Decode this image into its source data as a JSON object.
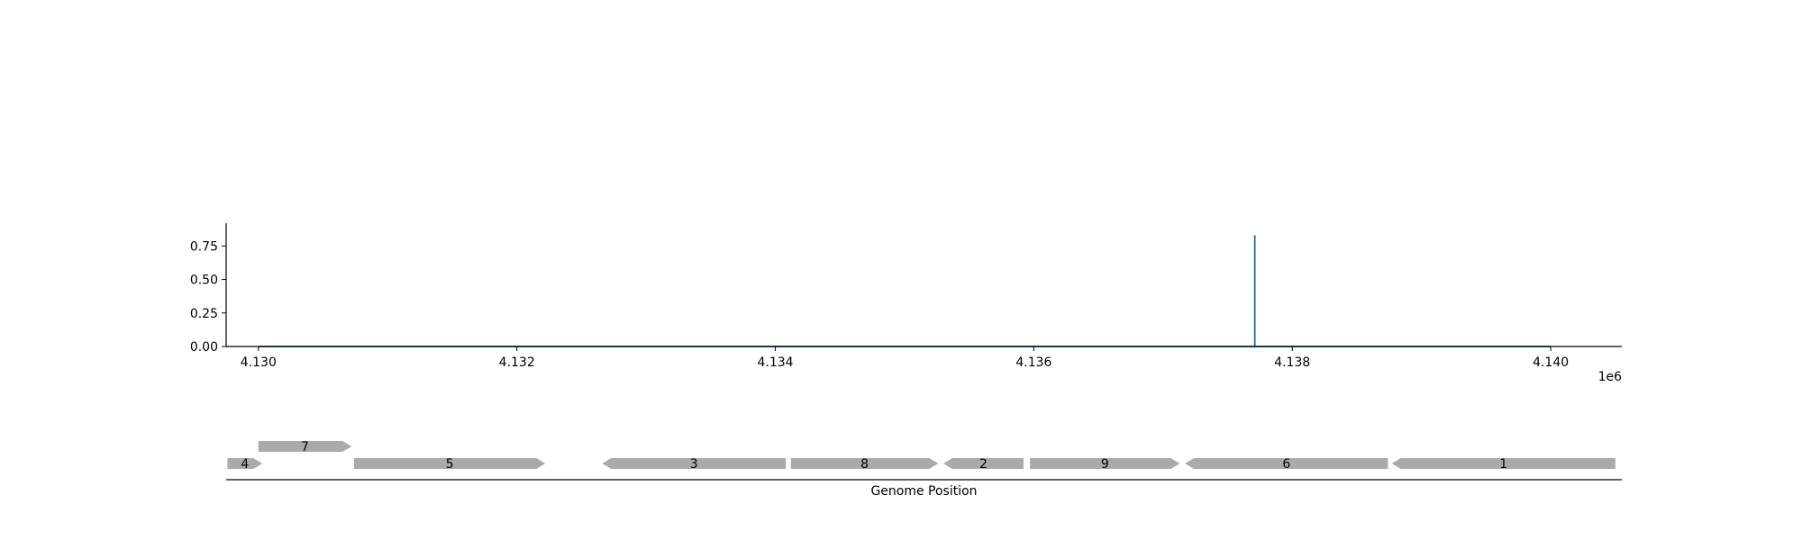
{
  "chart_data": [
    {
      "type": "line",
      "title": "",
      "xlabel": "",
      "ylabel": "",
      "x_offset_label": "1e6",
      "xlim": [
        4.12975,
        4.14055
      ],
      "ylim": [
        0,
        0.92
      ],
      "x_ticks": [
        4.13,
        4.132,
        4.134,
        4.136,
        4.138,
        4.14
      ],
      "x_tick_labels": [
        "4.130",
        "4.132",
        "4.134",
        "4.136",
        "4.138",
        "4.140"
      ],
      "y_ticks": [
        0.0,
        0.25,
        0.5,
        0.75
      ],
      "y_tick_labels": [
        "0.00",
        "0.25",
        "0.50",
        "0.75"
      ],
      "grid": false,
      "series": [
        {
          "color": "#1f6f9f",
          "x": [
            4.13,
            4.13771,
            4.13771,
            4.13771,
            4.14
          ],
          "y": [
            0,
            0,
            0.83,
            0,
            0
          ]
        }
      ]
    },
    {
      "type": "gene_track",
      "xlabel": "Genome Position",
      "color": "#aaaaaa",
      "genes": [
        {
          "label": "4",
          "start": 4.12976,
          "end": 4.13003,
          "strand": "+",
          "row": 0
        },
        {
          "label": "7",
          "start": 4.13,
          "end": 4.13072,
          "strand": "+",
          "row": 1
        },
        {
          "label": "5",
          "start": 4.13074,
          "end": 4.13222,
          "strand": "+",
          "row": 0
        },
        {
          "label": "3",
          "start": 4.13266,
          "end": 4.13408,
          "strand": "-",
          "row": 0
        },
        {
          "label": "8",
          "start": 4.13412,
          "end": 4.13526,
          "strand": "+",
          "row": 0
        },
        {
          "label": "2",
          "start": 4.1353,
          "end": 4.13592,
          "strand": "-",
          "row": 0
        },
        {
          "label": "9",
          "start": 4.13597,
          "end": 4.13713,
          "strand": "+",
          "row": 0
        },
        {
          "label": "6",
          "start": 4.13717,
          "end": 4.13874,
          "strand": "-",
          "row": 0
        },
        {
          "label": "1",
          "start": 4.13877,
          "end": 4.1405,
          "strand": "-",
          "row": 0
        }
      ]
    }
  ]
}
